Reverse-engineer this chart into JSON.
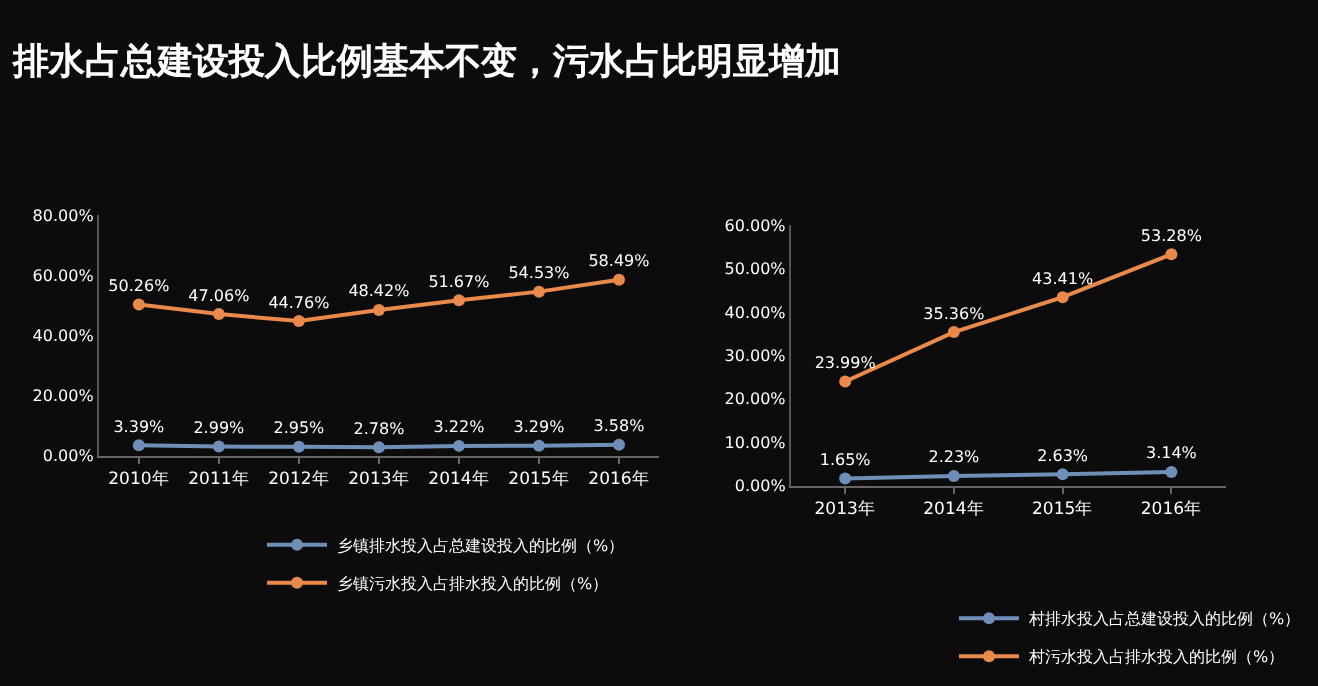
{
  "chart_data": [
    {
      "type": "line",
      "title": "排水占总建设投入比例基本不变，污水占比明显增加",
      "categories": [
        "2010年",
        "2011年",
        "2012年",
        "2013年",
        "2014年",
        "2015年",
        "2016年"
      ],
      "series": [
        {
          "name": "乡镇排水投入占总建设投入的比例（%）",
          "color": "#6f8fb8",
          "values": [
            3.39,
            2.99,
            2.95,
            2.78,
            3.22,
            3.29,
            3.58
          ],
          "value_labels": [
            "3.39%",
            "2.99%",
            "2.95%",
            "2.78%",
            "3.22%",
            "3.29%",
            "3.58%"
          ]
        },
        {
          "name": "乡镇污水投入占排水投入的比例（%）",
          "color": "#e98a4a",
          "values": [
            50.26,
            47.06,
            44.76,
            48.42,
            51.67,
            54.53,
            58.49
          ],
          "value_labels": [
            "50.26%",
            "47.06%",
            "44.76%",
            "48.42%",
            "51.67%",
            "54.53%",
            "58.49%"
          ]
        }
      ],
      "ylim": [
        0,
        80
      ],
      "yticks": [
        {
          "value": 0,
          "label": "0.00%"
        },
        {
          "value": 20,
          "label": "20.00%"
        },
        {
          "value": 40,
          "label": "40.00%"
        },
        {
          "value": 60,
          "label": "60.00%"
        },
        {
          "value": 80,
          "label": "80.00%"
        }
      ],
      "legend": "bottom",
      "marker": "circle",
      "line_style": "solid",
      "grid": false
    },
    {
      "type": "line",
      "categories": [
        "2013年",
        "2014年",
        "2015年",
        "2016年"
      ],
      "series": [
        {
          "name": "村排水投入占总建设投入的比例（%）",
          "color": "#6f8fb8",
          "values": [
            1.65,
            2.23,
            2.63,
            3.14
          ],
          "value_labels": [
            "1.65%",
            "2.23%",
            "2.63%",
            "3.14%"
          ]
        },
        {
          "name": "村污水投入占排水投入的比例（%）",
          "color": "#e98a4a",
          "values": [
            23.99,
            35.36,
            43.41,
            53.28
          ],
          "value_labels": [
            "23.99%",
            "35.36%",
            "43.41%",
            "53.28%"
          ]
        }
      ],
      "ylim": [
        0,
        60
      ],
      "yticks": [
        {
          "value": 0,
          "label": "0.00%"
        },
        {
          "value": 10,
          "label": "10.00%"
        },
        {
          "value": 20,
          "label": "20.00%"
        },
        {
          "value": 30,
          "label": "30.00%"
        },
        {
          "value": 40,
          "label": "40.00%"
        },
        {
          "value": 50,
          "label": "50.00%"
        },
        {
          "value": 60,
          "label": "60.00%"
        }
      ],
      "legend": "bottom",
      "marker": "circle",
      "line_style": "solid",
      "grid": false
    }
  ]
}
